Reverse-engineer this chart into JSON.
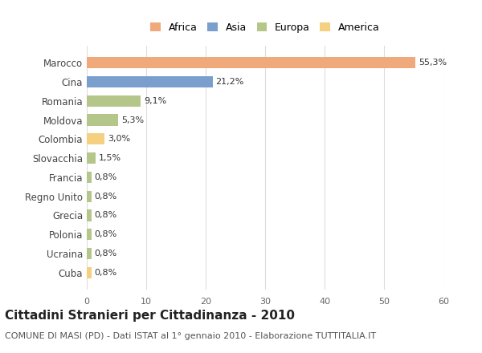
{
  "categories": [
    "Marocco",
    "Cina",
    "Romania",
    "Moldova",
    "Colombia",
    "Slovacchia",
    "Francia",
    "Regno Unito",
    "Grecia",
    "Polonia",
    "Ucraina",
    "Cuba"
  ],
  "values": [
    55.3,
    21.2,
    9.1,
    5.3,
    3.0,
    1.5,
    0.8,
    0.8,
    0.8,
    0.8,
    0.8,
    0.8
  ],
  "labels": [
    "55,3%",
    "21,2%",
    "9,1%",
    "5,3%",
    "3,0%",
    "1,5%",
    "0,8%",
    "0,8%",
    "0,8%",
    "0,8%",
    "0,8%",
    "0,8%"
  ],
  "colors": [
    "#F0A97A",
    "#7B9FCC",
    "#B5C68A",
    "#B5C68A",
    "#F5D080",
    "#B5C68A",
    "#B5C68A",
    "#B5C68A",
    "#B5C68A",
    "#B5C68A",
    "#B5C68A",
    "#F5D080"
  ],
  "legend_labels": [
    "Africa",
    "Asia",
    "Europa",
    "America"
  ],
  "legend_colors": [
    "#F0A97A",
    "#7B9FCC",
    "#B5C68A",
    "#F5D080"
  ],
  "xlim": [
    0,
    60
  ],
  "xticks": [
    0,
    10,
    20,
    30,
    40,
    50,
    60
  ],
  "title": "Cittadini Stranieri per Cittadinanza - 2010",
  "subtitle": "COMUNE DI MASI (PD) - Dati ISTAT al 1° gennaio 2010 - Elaborazione TUTTITALIA.IT",
  "title_fontsize": 11,
  "subtitle_fontsize": 8,
  "bg_color": "#ffffff",
  "grid_color": "#dddddd"
}
